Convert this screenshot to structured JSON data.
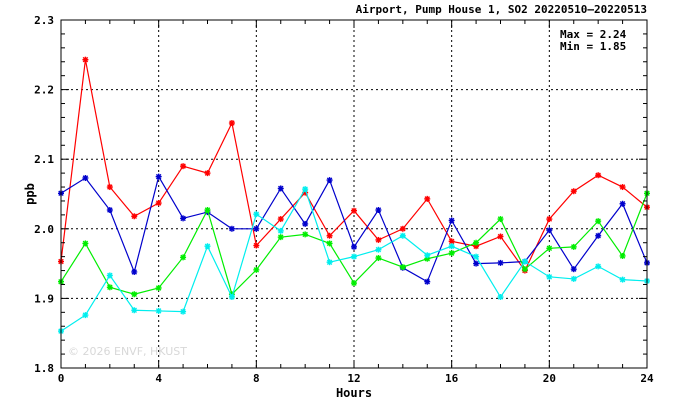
{
  "chart_data": {
    "type": "line",
    "title": "Airport, Pump House 1, SO2 20220510–20220513",
    "xlabel": "Hours",
    "ylabel": "ppb",
    "xlim": [
      0,
      24
    ],
    "ylim": [
      1.8,
      2.3
    ],
    "xticks": [
      0,
      4,
      8,
      12,
      16,
      20,
      24
    ],
    "xtick_labels": [
      "0",
      "4",
      "8",
      "12",
      "16",
      "20",
      "24"
    ],
    "yticks": [
      1.8,
      1.9,
      2.0,
      2.1,
      2.2,
      2.3
    ],
    "ytick_labels": [
      "1.8",
      "1.9",
      "2.0",
      "2.1",
      "2.2",
      "2.3"
    ],
    "grid": true,
    "marker": "*",
    "stats": {
      "max_label": "Max = 2.24",
      "min_label": "Min = 1.85"
    },
    "watermark": "© 2026  ENVF, HKUST",
    "series": [
      {
        "color": "#ff0000",
        "x": [
          0,
          1,
          2,
          3,
          4,
          5,
          6,
          7,
          8,
          9,
          10,
          11,
          12,
          13,
          14,
          15,
          16,
          17,
          18,
          19,
          20,
          21,
          22,
          23,
          24
        ],
        "y": [
          1.953,
          2.243,
          2.06,
          2.018,
          2.037,
          2.09,
          2.08,
          2.152,
          1.976,
          2.014,
          2.052,
          1.99,
          2.026,
          1.984,
          2.0,
          2.043,
          1.982,
          1.975,
          1.989,
          1.94,
          2.014,
          2.054,
          2.077,
          2.06,
          2.031
        ]
      },
      {
        "color": "#0000cc",
        "x": [
          0,
          1,
          2,
          3,
          4,
          5,
          6,
          7,
          8,
          9,
          10,
          11,
          12,
          13,
          14,
          15,
          16,
          17,
          18,
          19,
          20,
          21,
          22,
          23,
          24
        ],
        "y": [
          2.051,
          2.073,
          2.027,
          1.938,
          2.075,
          2.015,
          2.024,
          2.0,
          2.0,
          2.058,
          2.007,
          2.07,
          1.974,
          2.027,
          1.944,
          1.924,
          2.012,
          1.95,
          1.951,
          1.953,
          1.998,
          1.942,
          1.99,
          2.036,
          1.951
        ]
      },
      {
        "color": "#00ee00",
        "x": [
          0,
          1,
          2,
          3,
          4,
          5,
          6,
          7,
          8,
          9,
          10,
          11,
          12,
          13,
          14,
          15,
          16,
          17,
          18,
          19,
          20,
          21,
          22,
          23,
          24
        ],
        "y": [
          1.924,
          1.979,
          1.916,
          1.906,
          1.915,
          1.959,
          2.027,
          1.906,
          1.941,
          1.988,
          1.992,
          1.979,
          1.922,
          1.958,
          1.945,
          1.957,
          1.965,
          1.98,
          2.014,
          1.942,
          1.972,
          1.974,
          2.011,
          1.961,
          2.051
        ]
      },
      {
        "color": "#00eeee",
        "x": [
          0,
          1,
          2,
          3,
          4,
          5,
          6,
          7,
          8,
          9,
          10,
          11,
          12,
          13,
          14,
          15,
          16,
          17,
          18,
          19,
          20,
          21,
          22,
          23,
          24
        ],
        "y": [
          1.853,
          1.876,
          1.933,
          1.883,
          1.882,
          1.881,
          1.975,
          1.902,
          2.021,
          1.997,
          2.057,
          1.952,
          1.96,
          1.97,
          1.99,
          1.962,
          1.975,
          1.96,
          1.902,
          1.953,
          1.931,
          1.928,
          1.946,
          1.927,
          1.925
        ]
      }
    ]
  }
}
